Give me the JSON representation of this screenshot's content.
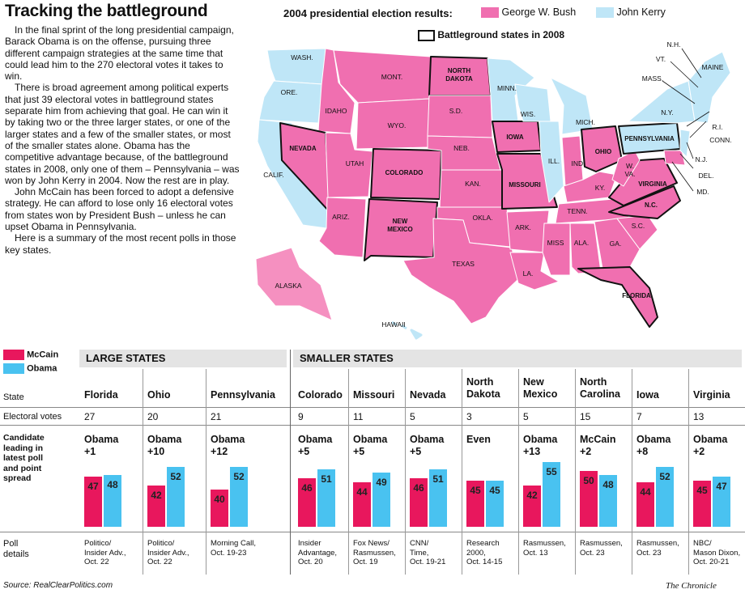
{
  "title": "Tracking the battleground",
  "intro": [
    "In the final sprint of the long presidential campaign, Barack Obama is on the offense, pursuing three different campaign strategies at the same time that could lead him to the 270 electoral votes it takes to win.",
    "There is broad agreement among political experts that just 39 electoral votes in battleground states separate him from achieving that goal. He can win it by taking two or the three larger states, or one of the larger states and a few of the smaller states, or most of the smaller states alone. Obama has the competitive advantage because, of the battleground states in 2008, only one of them – Pennsylvania – was won by John Kerry in 2004. Now the rest are in play.",
    "John McCain has been forced to adopt a defensive strategy. He can afford to lose only 16 electoral votes from states won by President Bush – unless he can upset Obama in Pennsylvania.",
    "Here is a summary of the most recent polls in those key states."
  ],
  "map_legend": {
    "title": "2004 presidential election results:",
    "bush": "George W. Bush",
    "kerry": "John Kerry",
    "battleground": "Battleground states in 2008",
    "bush_color": "#f06fb0",
    "kerry_color": "#bfe6f7",
    "alaska_color": "#f590c0"
  },
  "map_labels": {
    "wash": "WASH.",
    "ore": "ORE.",
    "calif": "CALIF.",
    "idaho": "IDAHO",
    "nevada": "NEVADA",
    "utah": "UTAH",
    "ariz": "ARIZ.",
    "mont": "MONT.",
    "wyo": "WYO.",
    "colorado": "COLORADO",
    "newmexico": [
      "NEW",
      "MEXICO"
    ],
    "northdakota": [
      "NORTH",
      "DAKOTA"
    ],
    "sd": "S.D.",
    "neb": "NEB.",
    "kan": "KAN.",
    "okla": "OKLA.",
    "texas": "TEXAS",
    "minn": "MINN.",
    "iowa": "IOWA",
    "missouri": "MISSOURI",
    "ark": "ARK.",
    "la": "LA.",
    "wis": "WIS.",
    "ill": "ILL.",
    "mich": "MICH.",
    "ind": "IND.",
    "ohio": "OHIO",
    "ky": "KY.",
    "tenn": "TENN.",
    "miss": "MISS",
    "ala": "ALA.",
    "ga": "GA.",
    "florida": "FLORIDA",
    "sc": "S.C.",
    "nc": "N.C.",
    "virginia": "VIRGINIA",
    "wv": [
      "W.",
      "VA."
    ],
    "pennsylvania": "PENNSYLVANIA",
    "ny": "N.Y.",
    "maine": "MAINE",
    "nh": "N.H.",
    "vt": "VT.",
    "mass": "MASS.",
    "ri": "R.I.",
    "conn": "CONN.",
    "nj": "N.J.",
    "del": "DEL.",
    "md": "MD.",
    "alaska": "ALASKA",
    "hawaii": "HAWAII"
  },
  "poll_legend": {
    "mccain": "McCain",
    "obama": "Obama",
    "mccain_color": "#e8175d",
    "obama_color": "#49c2f0"
  },
  "groups": {
    "large": "LARGE STATES",
    "small": "SMALLER STATES"
  },
  "row_labels": {
    "state": "State",
    "ev": "Electoral votes",
    "leader": [
      "Candidate",
      "leading in",
      "latest poll",
      "and point",
      "spread"
    ],
    "poll": [
      "Poll",
      "details"
    ]
  },
  "chart_data": {
    "type": "bar",
    "categories": [
      "Florida",
      "Ohio",
      "Pennsylvania",
      "Colorado",
      "Missouri",
      "Nevada",
      "North Dakota",
      "New Mexico",
      "North Carolina",
      "Iowa",
      "Virginia"
    ],
    "electoral_votes": [
      27,
      20,
      21,
      9,
      11,
      5,
      3,
      5,
      15,
      7,
      13
    ],
    "leader": [
      [
        "Obama",
        "+1"
      ],
      [
        "Obama",
        "+10"
      ],
      [
        "Obama",
        "+12"
      ],
      [
        "Obama",
        "+5"
      ],
      [
        "Obama",
        "+5"
      ],
      [
        "Obama",
        "+5"
      ],
      [
        "Even",
        ""
      ],
      [
        "Obama",
        "+13"
      ],
      [
        "McCain",
        "+2"
      ],
      [
        "Obama",
        "+8"
      ],
      [
        "Obama",
        "+2"
      ]
    ],
    "series": [
      {
        "name": "McCain",
        "values": [
          47,
          42,
          40,
          46,
          44,
          46,
          45,
          42,
          50,
          44,
          45
        ]
      },
      {
        "name": "Obama",
        "values": [
          48,
          52,
          52,
          51,
          49,
          51,
          45,
          55,
          48,
          52,
          47
        ]
      }
    ],
    "poll_details": [
      [
        "Politico/",
        "Insider Adv.,",
        "Oct. 22"
      ],
      [
        "Politico/",
        "Insider Adv.,",
        "Oct. 22"
      ],
      [
        "Morning Call,",
        "Oct. 19-23"
      ],
      [
        "Insider",
        "Advantage,",
        "Oct. 20"
      ],
      [
        "Fox News/",
        "Rasmussen,",
        "Oct. 19"
      ],
      [
        "CNN/",
        "Time,",
        "Oct. 19-21"
      ],
      [
        "Research",
        "2000,",
        "Oct. 14-15"
      ],
      [
        "Rasmussen,",
        "Oct. 13"
      ],
      [
        "Rasmussen,",
        "Oct. 23"
      ],
      [
        "Rasmussen,",
        "Oct. 23"
      ],
      [
        "NBC/",
        "Mason Dixon,",
        "Oct. 20-21"
      ]
    ]
  },
  "source": "Source: RealClearPolitics.com",
  "credit": "The Chronicle"
}
